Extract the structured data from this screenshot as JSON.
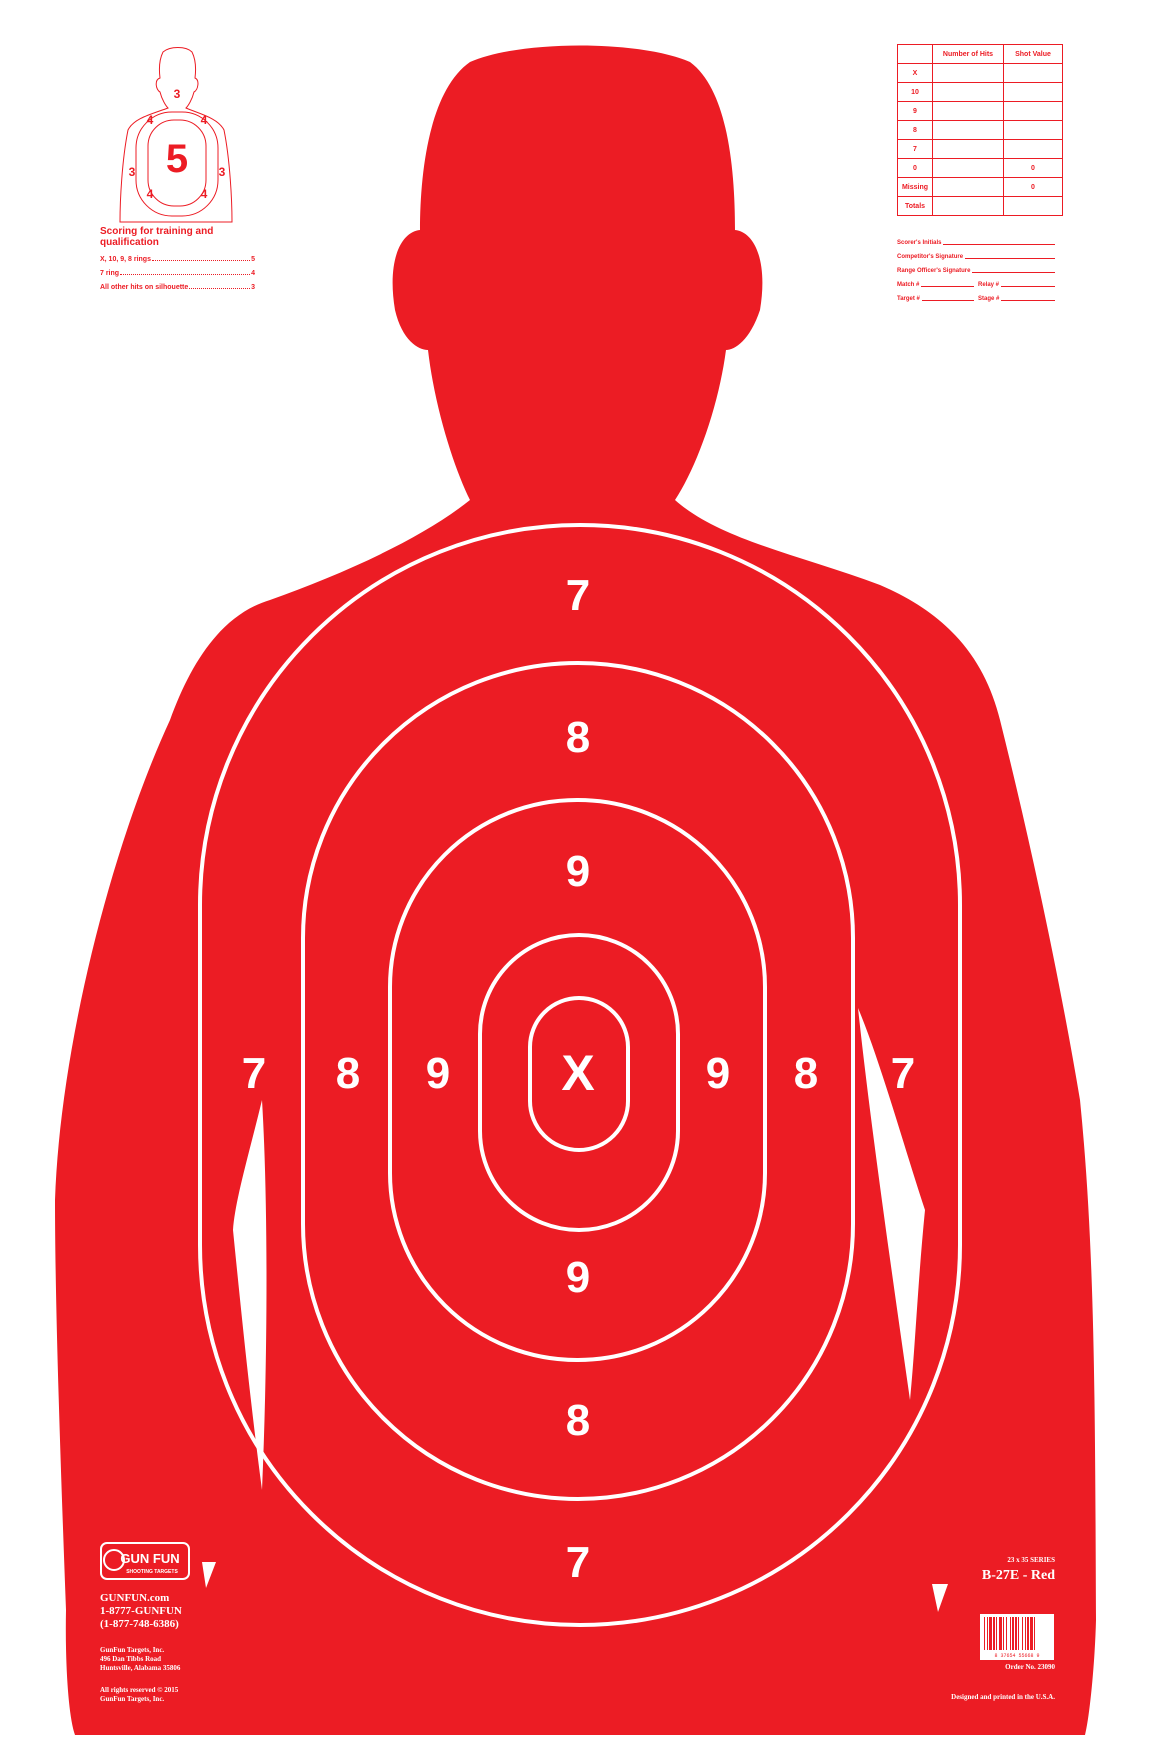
{
  "rings": {
    "seven": "7",
    "eight": "8",
    "nine": "9",
    "center": "X"
  },
  "mini_target": {
    "top": "3",
    "shoulder_left": "4",
    "shoulder_right": "4",
    "side_left": "3",
    "side_right": "3",
    "hip_left": "4",
    "hip_right": "4",
    "center": "5"
  },
  "scoring_legend": {
    "title": "Scoring for training and qualification",
    "rows": [
      {
        "label": "X, 10, 9, 8 rings",
        "value": "5"
      },
      {
        "label": "7 ring",
        "value": "4"
      },
      {
        "label": "All other hits on silhouette",
        "value": "3"
      }
    ]
  },
  "score_table": {
    "headers": [
      "",
      "Number of Hits",
      "Shot Value"
    ],
    "rows": [
      {
        "label": "X",
        "hits": "",
        "value": ""
      },
      {
        "label": "10",
        "hits": "",
        "value": ""
      },
      {
        "label": "9",
        "hits": "",
        "value": ""
      },
      {
        "label": "8",
        "hits": "",
        "value": ""
      },
      {
        "label": "7",
        "hits": "",
        "value": ""
      },
      {
        "label": "0",
        "hits": "",
        "value": "0"
      },
      {
        "label": "Missing",
        "hits": "",
        "value": "0"
      },
      {
        "label": "Totals",
        "hits": "",
        "value": ""
      }
    ]
  },
  "signatures": {
    "scorer": "Scorer's Initials",
    "competitor": "Competitor's Signature",
    "range_officer": "Range Officer's Signature",
    "match": "Match #",
    "relay": "Relay #",
    "target": "Target #",
    "stage": "Stage #"
  },
  "brand": {
    "logo_text": "GUN FUN",
    "logo_sub": "SHOOTING TARGETS",
    "website": "GUNFUN.com",
    "phone_word": "1-8777-GUNFUN",
    "phone_num": "(1-877-748-6386)",
    "company": "GunFun Targets, Inc.",
    "street": "496 Dan Tibbs Road",
    "city": "Huntsville, Alabama 35806",
    "rights": "All rights reserved © 2015",
    "rights_company": "GunFun Targets, Inc."
  },
  "product": {
    "series": "23 x 35 SERIES",
    "model": "B-27E - Red",
    "order": "Order No. 23090",
    "printed": "Designed and printed in the U.S.A.",
    "barcode_digits": "8 37654 55668 9"
  },
  "colors": {
    "red": "#ec1c24",
    "white": "#ffffff"
  }
}
